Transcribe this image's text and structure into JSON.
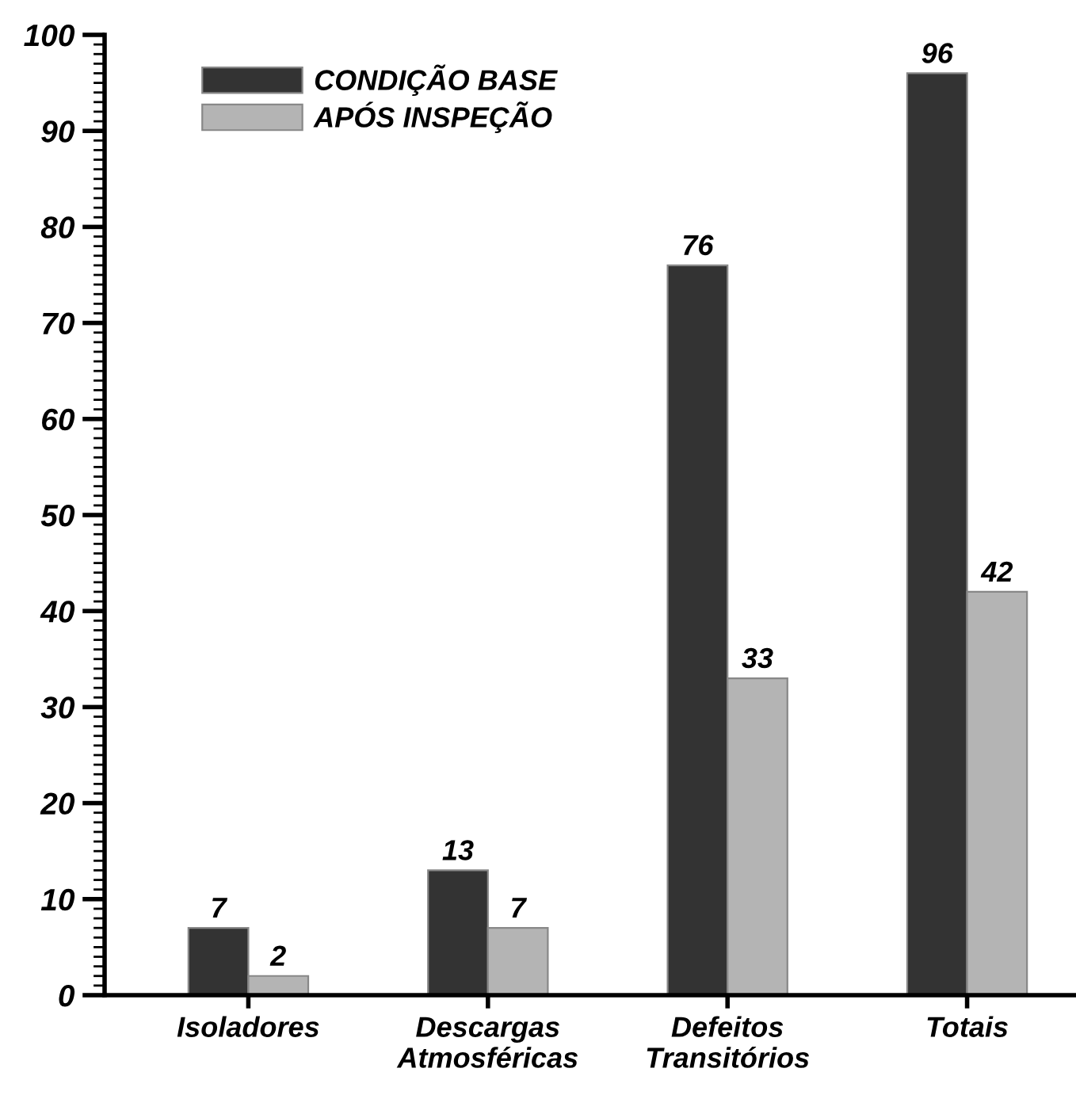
{
  "chart_data": {
    "type": "bar",
    "categories": [
      "Isoladores",
      "Descargas\nAtmosféricas",
      "Defeitos\nTransitórios",
      "Totais"
    ],
    "series": [
      {
        "name": "CONDIÇÃO BASE",
        "color": "#333333",
        "values": [
          7,
          13,
          76,
          96
        ]
      },
      {
        "name": "APÓS INSPEÇÃO",
        "color": "#b4b4b4",
        "values": [
          2,
          7,
          33,
          42
        ]
      }
    ],
    "ylim": [
      0,
      100
    ],
    "yticks": [
      0,
      10,
      20,
      30,
      40,
      50,
      60,
      70,
      80,
      90,
      100
    ],
    "data_labels": true,
    "legend": "top left",
    "grid": false
  }
}
